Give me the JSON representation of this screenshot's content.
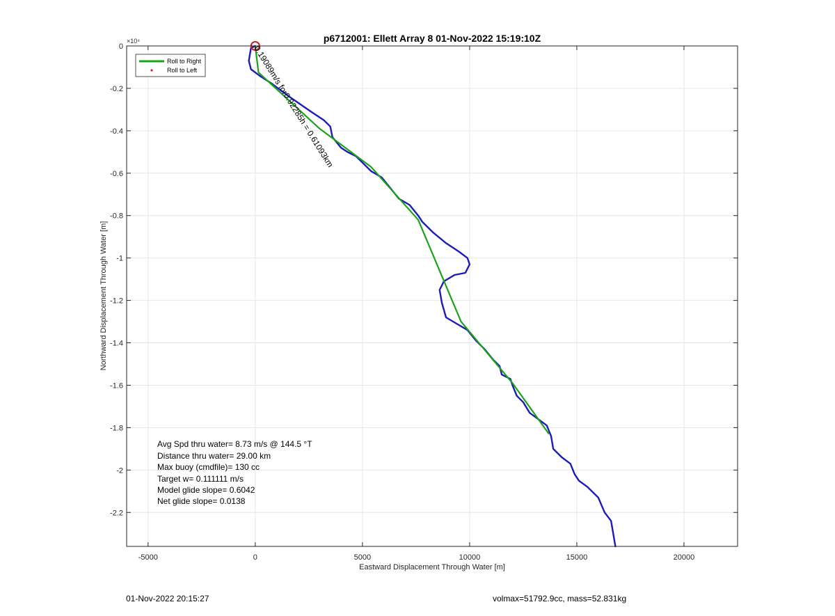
{
  "chart_data": {
    "type": "line",
    "title": "p6712001: Ellett Array 8 01-Nov-2022 15:19:10Z",
    "xlabel": "Eastward Displacement Through Water [m]",
    "ylabel": "Northward Displacement Through Water [m]",
    "xlim": [
      -6000,
      22500
    ],
    "ylim": [
      -23600,
      0
    ],
    "x_ticks": [
      -5000,
      0,
      5000,
      10000,
      15000,
      20000
    ],
    "x_tick_labels": [
      "-5000",
      "0",
      "5000",
      "10000",
      "15000",
      "20000"
    ],
    "y_ticks": [
      0,
      -2000,
      -4000,
      -6000,
      -8000,
      -10000,
      -12000,
      -14000,
      -16000,
      -18000,
      -20000,
      -22000
    ],
    "y_tick_labels": [
      "0",
      "-0.2",
      "-0.4",
      "-0.6",
      "-0.8",
      "-1",
      "-1.2",
      "-1.4",
      "-1.6",
      "-1.8",
      "-2",
      "-2.2"
    ],
    "y_exponent_label": "×10⁴",
    "grid": true,
    "legend": {
      "placement": "top-left",
      "entries": [
        {
          "name": "Roll to Right",
          "color": "#1aa31a",
          "marker": "line"
        },
        {
          "name": "Roll to Left",
          "color": "#e81818",
          "marker": "dot"
        }
      ]
    },
    "series": [
      {
        "name": "Roll to Right",
        "color": "#1aa31a",
        "x": [
          0,
          150,
          3000,
          5400,
          7600,
          9600,
          12000,
          13700
        ],
        "y": [
          0,
          -1250,
          -3900,
          -5700,
          -8200,
          -13000,
          -15900,
          -18300
        ]
      },
      {
        "color": "#1c1cb8",
        "x": [
          0,
          -200,
          -300,
          -200,
          200,
          800,
          1600,
          2600,
          3200,
          3500,
          3600,
          4000,
          4300,
          4700,
          5000,
          5400,
          5900,
          6300,
          6700,
          7200,
          7600,
          7800,
          8300,
          8900,
          9500,
          9900,
          10000,
          9800,
          9300,
          8800,
          8600,
          8700,
          8900,
          9400,
          9900,
          10300,
          10700,
          11100,
          11400,
          11500,
          11900,
          12000,
          12200,
          12500,
          12800,
          13200,
          13600,
          13800,
          13900,
          14300,
          14700,
          14900,
          15100,
          15500,
          16000,
          16300,
          16600,
          16800
        ],
        "y": [
          0,
          -100,
          -700,
          -1100,
          -1400,
          -1800,
          -2400,
          -3100,
          -3500,
          -3800,
          -4300,
          -4800,
          -5000,
          -5200,
          -5500,
          -5900,
          -6200,
          -6700,
          -7200,
          -7500,
          -8000,
          -8300,
          -8800,
          -9300,
          -9700,
          -10000,
          -10300,
          -10700,
          -10800,
          -11100,
          -11500,
          -12100,
          -12800,
          -13100,
          -13400,
          -13900,
          -14300,
          -14800,
          -15100,
          -15500,
          -15700,
          -16000,
          -16500,
          -16800,
          -17300,
          -17600,
          -17900,
          -18400,
          -19000,
          -19400,
          -19700,
          -20200,
          -20500,
          -20800,
          -21300,
          -22000,
          -22400,
          -23600
        ]
      }
    ],
    "start_marker": {
      "x": 0,
      "y": 0,
      "color": "#cc1f2d"
    },
    "waypoint_label": {
      "text": "0.19089m/s for0.92285h = 0.61093km",
      "x": 0,
      "y": 0,
      "angle_deg": 58
    },
    "annotations": [
      "Avg Spd thru water=  8.73 m/s @ 144.5 °T",
      "Distance thru water= 29.00 km",
      "Max buoy (cmdfile)= 130 cc",
      "Target w= 0.111111 m/s",
      "Model glide slope= 0.6042",
      "Net glide slope= 0.0138"
    ]
  },
  "footer": {
    "timestamp": "01-Nov-2022 20:15:27",
    "volmax_mass": "volmax=51792.9cc, mass=52.831kg"
  }
}
